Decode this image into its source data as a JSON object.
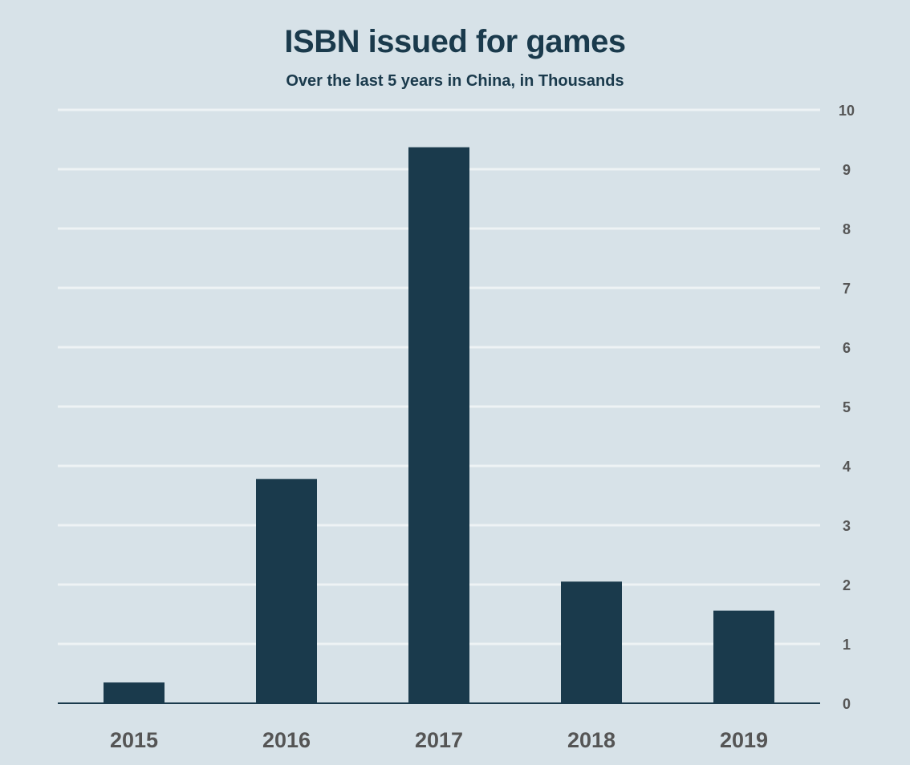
{
  "chart_data": {
    "type": "bar",
    "title": "ISBN issued for games",
    "subtitle": "Over the last 5 years in China, in Thousands",
    "categories": [
      "2015",
      "2016",
      "2017",
      "2018",
      "2019"
    ],
    "values": [
      0.35,
      3.78,
      9.37,
      2.05,
      1.56
    ],
    "xlabel": "",
    "ylabel": "",
    "ylim": [
      0,
      10
    ],
    "yticks": [
      "0",
      "1",
      "2",
      "3",
      "4",
      "5",
      "6",
      "7",
      "8",
      "9",
      "10"
    ],
    "y_axis_side": "right",
    "grid": true,
    "legend": "none",
    "colors": {
      "background": "#d7e2e8",
      "bar": "#1a3a4c",
      "gridline": "#eef3f5",
      "axis": "#1a3a4c"
    }
  }
}
